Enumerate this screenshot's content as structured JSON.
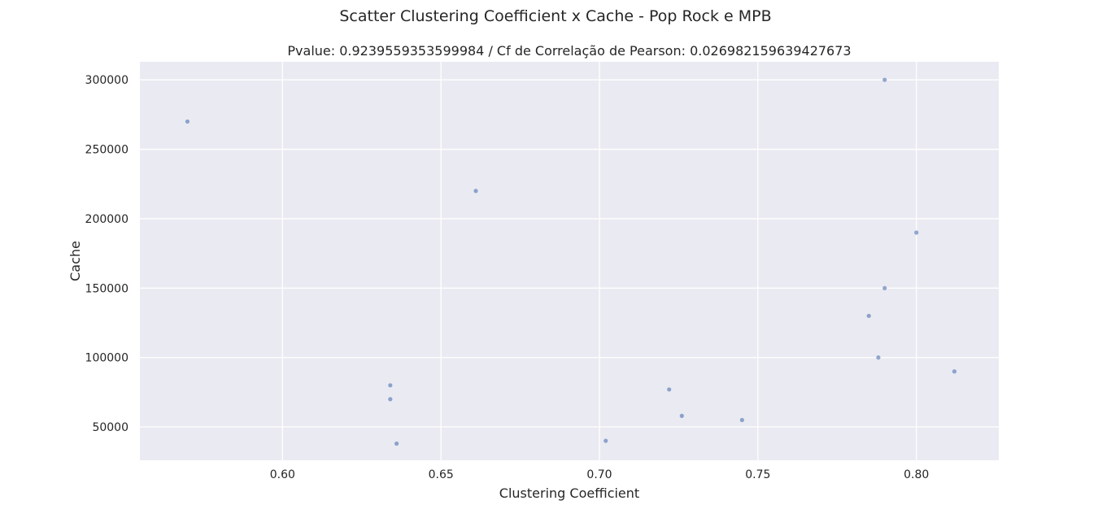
{
  "figure": {
    "title": "Scatter Clustering Coefficient x Cache - Pop Rock e MPB"
  },
  "chart_data": {
    "type": "scatter",
    "title": "Pvalue: 0.9239559353599984 / Cf de Correlação de Pearson: 0.026982159639427673",
    "xlabel": "Clustering Coefficient",
    "ylabel": "Cache",
    "xlim": [
      0.555,
      0.826
    ],
    "ylim": [
      26000,
      313000
    ],
    "xticks": [
      0.6,
      0.65,
      0.7,
      0.75,
      0.8
    ],
    "xtick_labels": [
      "0.60",
      "0.65",
      "0.70",
      "0.75",
      "0.80"
    ],
    "yticks": [
      50000,
      100000,
      150000,
      200000,
      250000,
      300000
    ],
    "ytick_labels": [
      "50000",
      "100000",
      "150000",
      "200000",
      "250000",
      "300000"
    ],
    "grid": true,
    "colors": {
      "background": "#eaeaf2",
      "grid": "#ffffff",
      "point": "#4c72b0"
    },
    "points": [
      {
        "x": 0.57,
        "y": 270000
      },
      {
        "x": 0.661,
        "y": 220000
      },
      {
        "x": 0.634,
        "y": 80000
      },
      {
        "x": 0.634,
        "y": 70000
      },
      {
        "x": 0.636,
        "y": 38000
      },
      {
        "x": 0.702,
        "y": 40000
      },
      {
        "x": 0.722,
        "y": 77000
      },
      {
        "x": 0.726,
        "y": 58000
      },
      {
        "x": 0.745,
        "y": 55000
      },
      {
        "x": 0.785,
        "y": 130000
      },
      {
        "x": 0.788,
        "y": 100000
      },
      {
        "x": 0.79,
        "y": 300000
      },
      {
        "x": 0.79,
        "y": 150000
      },
      {
        "x": 0.8,
        "y": 190000
      },
      {
        "x": 0.812,
        "y": 90000
      }
    ]
  }
}
